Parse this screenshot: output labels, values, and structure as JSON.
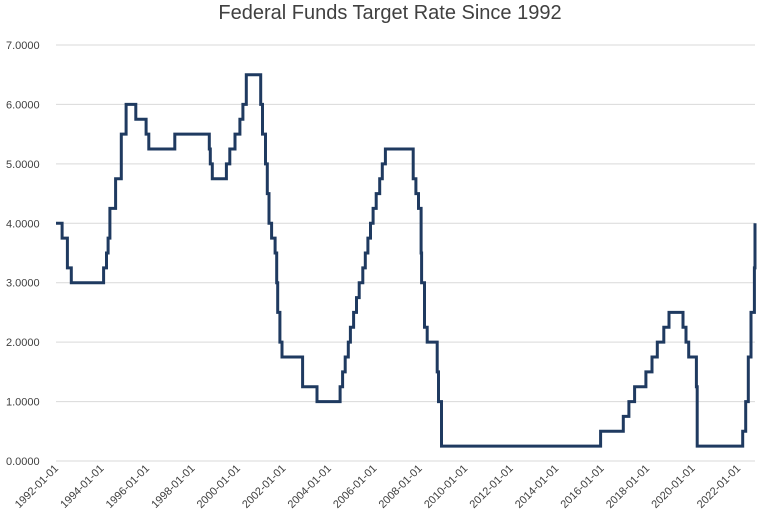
{
  "chart_data": {
    "type": "line",
    "title": "Federal Funds Target Rate Since 1992",
    "xlabel": "",
    "ylabel": "",
    "ylim": [
      0,
      7
    ],
    "xlim": [
      "1992-01-01",
      "2022-09-30"
    ],
    "grid": true,
    "legend": "none",
    "line_color": "#1f3a60",
    "y_ticks": [
      "0.0000",
      "1.0000",
      "2.0000",
      "3.0000",
      "4.0000",
      "5.0000",
      "6.0000",
      "7.0000"
    ],
    "y_tick_values": [
      0,
      1,
      2,
      3,
      4,
      5,
      6,
      7
    ],
    "x_ticks": [
      "1992-01-01",
      "1994-01-01",
      "1996-01-01",
      "1998-01-01",
      "2000-01-01",
      "2002-01-01",
      "2004-01-01",
      "2006-01-01",
      "2008-01-01",
      "2010-01-01",
      "2012-01-01",
      "2014-01-01",
      "2016-01-01",
      "2018-01-01",
      "2020-01-01",
      "2022-01-01"
    ],
    "series": [
      {
        "x": [
          "1992-01-01",
          "1992-04-09",
          "1992-07-02",
          "1992-09-04",
          "1994-02-04",
          "1994-03-22",
          "1994-04-18",
          "1994-05-17",
          "1994-08-16",
          "1994-11-15",
          "1995-02-01",
          "1995-07-06",
          "1995-12-19",
          "1996-01-31",
          "1997-03-25",
          "1998-09-29",
          "1998-10-15",
          "1998-11-17",
          "1999-06-30",
          "1999-08-24",
          "1999-11-16",
          "2000-02-02",
          "2000-03-21",
          "2000-05-16",
          "2001-01-03",
          "2001-01-31",
          "2001-03-20",
          "2001-04-18",
          "2001-05-15",
          "2001-06-27",
          "2001-08-21",
          "2001-09-17",
          "2001-10-02",
          "2001-11-06",
          "2001-12-11",
          "2002-11-06",
          "2003-06-25",
          "2004-06-30",
          "2004-08-10",
          "2004-09-21",
          "2004-11-10",
          "2004-12-14",
          "2005-02-02",
          "2005-03-22",
          "2005-05-03",
          "2005-06-30",
          "2005-08-09",
          "2005-09-20",
          "2005-11-01",
          "2005-12-13",
          "2006-01-31",
          "2006-03-28",
          "2006-05-10",
          "2006-06-29",
          "2007-09-18",
          "2007-10-31",
          "2007-12-11",
          "2008-01-22",
          "2008-01-30",
          "2008-03-18",
          "2008-04-30",
          "2008-10-08",
          "2008-10-29",
          "2008-12-16",
          "2015-12-16",
          "2016-12-14",
          "2017-03-15",
          "2017-06-14",
          "2017-12-13",
          "2018-03-21",
          "2018-06-13",
          "2018-09-26",
          "2018-12-19",
          "2019-07-31",
          "2019-09-18",
          "2019-10-30",
          "2020-03-03",
          "2020-03-15",
          "2022-03-16",
          "2022-05-04",
          "2022-06-15",
          "2022-07-27",
          "2022-09-21",
          "2022-09-30"
        ],
        "values": [
          4.0,
          3.75,
          3.25,
          3.0,
          3.25,
          3.5,
          3.75,
          4.25,
          4.75,
          5.5,
          6.0,
          5.75,
          5.5,
          5.25,
          5.5,
          5.25,
          5.0,
          4.75,
          5.0,
          5.25,
          5.5,
          5.75,
          6.0,
          6.5,
          6.0,
          5.5,
          5.0,
          4.5,
          4.0,
          3.75,
          3.5,
          3.0,
          2.5,
          2.0,
          1.75,
          1.25,
          1.0,
          1.25,
          1.5,
          1.75,
          2.0,
          2.25,
          2.5,
          2.75,
          3.0,
          3.25,
          3.5,
          3.75,
          4.0,
          4.25,
          4.5,
          4.75,
          5.0,
          5.25,
          4.75,
          4.5,
          4.25,
          3.5,
          3.0,
          2.25,
          2.0,
          1.5,
          1.0,
          0.25,
          0.5,
          0.75,
          1.0,
          1.25,
          1.5,
          1.75,
          2.0,
          2.25,
          2.5,
          2.25,
          2.0,
          1.75,
          1.25,
          0.25,
          0.5,
          1.0,
          1.75,
          2.5,
          3.25,
          4.0
        ]
      }
    ]
  }
}
